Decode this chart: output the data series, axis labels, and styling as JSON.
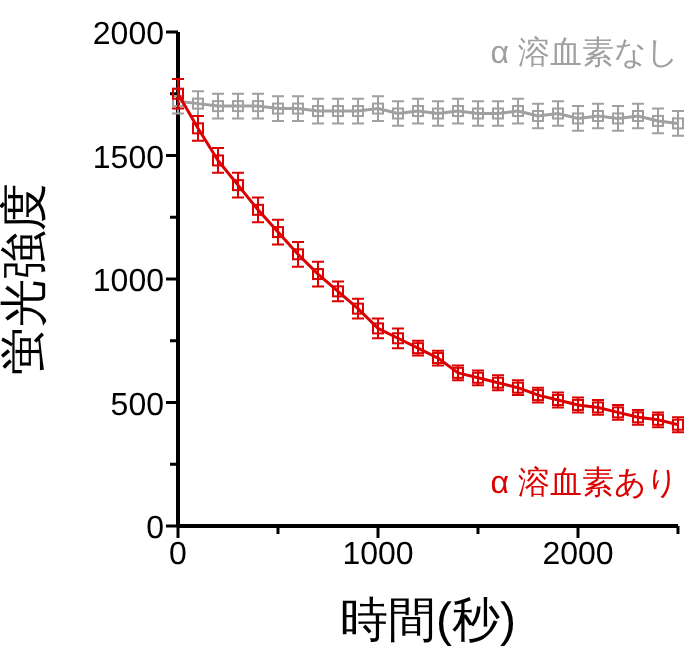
{
  "chart_data": {
    "type": "line",
    "xlabel": "時間(秒)",
    "ylabel": "蛍光強度",
    "x": [
      0,
      100,
      200,
      300,
      400,
      500,
      600,
      700,
      800,
      900,
      1000,
      1100,
      1200,
      1300,
      1400,
      1500,
      1600,
      1700,
      1800,
      1900,
      2000,
      2100,
      2200,
      2300,
      2400,
      2500
    ],
    "series": [
      {
        "name": "α 溶血素なし",
        "color": "#a0a0a0",
        "values": [
          1720,
          1710,
          1700,
          1700,
          1700,
          1690,
          1690,
          1680,
          1680,
          1680,
          1690,
          1670,
          1680,
          1670,
          1680,
          1670,
          1670,
          1680,
          1660,
          1670,
          1650,
          1660,
          1650,
          1660,
          1640,
          1630
        ],
        "errors": [
          50,
          50,
          50,
          50,
          50,
          50,
          50,
          50,
          50,
          50,
          50,
          50,
          50,
          50,
          50,
          50,
          50,
          50,
          50,
          50,
          50,
          50,
          50,
          50,
          50,
          50
        ]
      },
      {
        "name": "α 溶血素あり",
        "color": "#dd0000",
        "values": [
          1750,
          1610,
          1480,
          1380,
          1280,
          1190,
          1100,
          1020,
          950,
          880,
          800,
          760,
          720,
          680,
          620,
          600,
          580,
          560,
          530,
          510,
          490,
          480,
          460,
          440,
          430,
          410
        ],
        "errors": [
          60,
          50,
          50,
          50,
          50,
          50,
          50,
          50,
          40,
          40,
          40,
          40,
          30,
          30,
          30,
          30,
          30,
          30,
          30,
          30,
          30,
          30,
          30,
          30,
          30,
          30
        ]
      }
    ],
    "xlim": [
      0,
      2500
    ],
    "ylim": [
      0,
      2000
    ],
    "xticks": [
      0,
      {
        "value": 500,
        "label": null
      },
      1000,
      {
        "value": 1500,
        "label": null
      },
      2000,
      {
        "value": 2500,
        "label": null
      }
    ],
    "yticks": [
      0,
      {
        "value": 250,
        "label": null
      },
      500,
      {
        "value": 750,
        "label": null
      },
      1000,
      {
        "value": 1250,
        "label": null
      },
      1500,
      {
        "value": 1750,
        "label": null
      },
      2000
    ],
    "marker": "square",
    "line_style": "solid",
    "grid": false
  }
}
